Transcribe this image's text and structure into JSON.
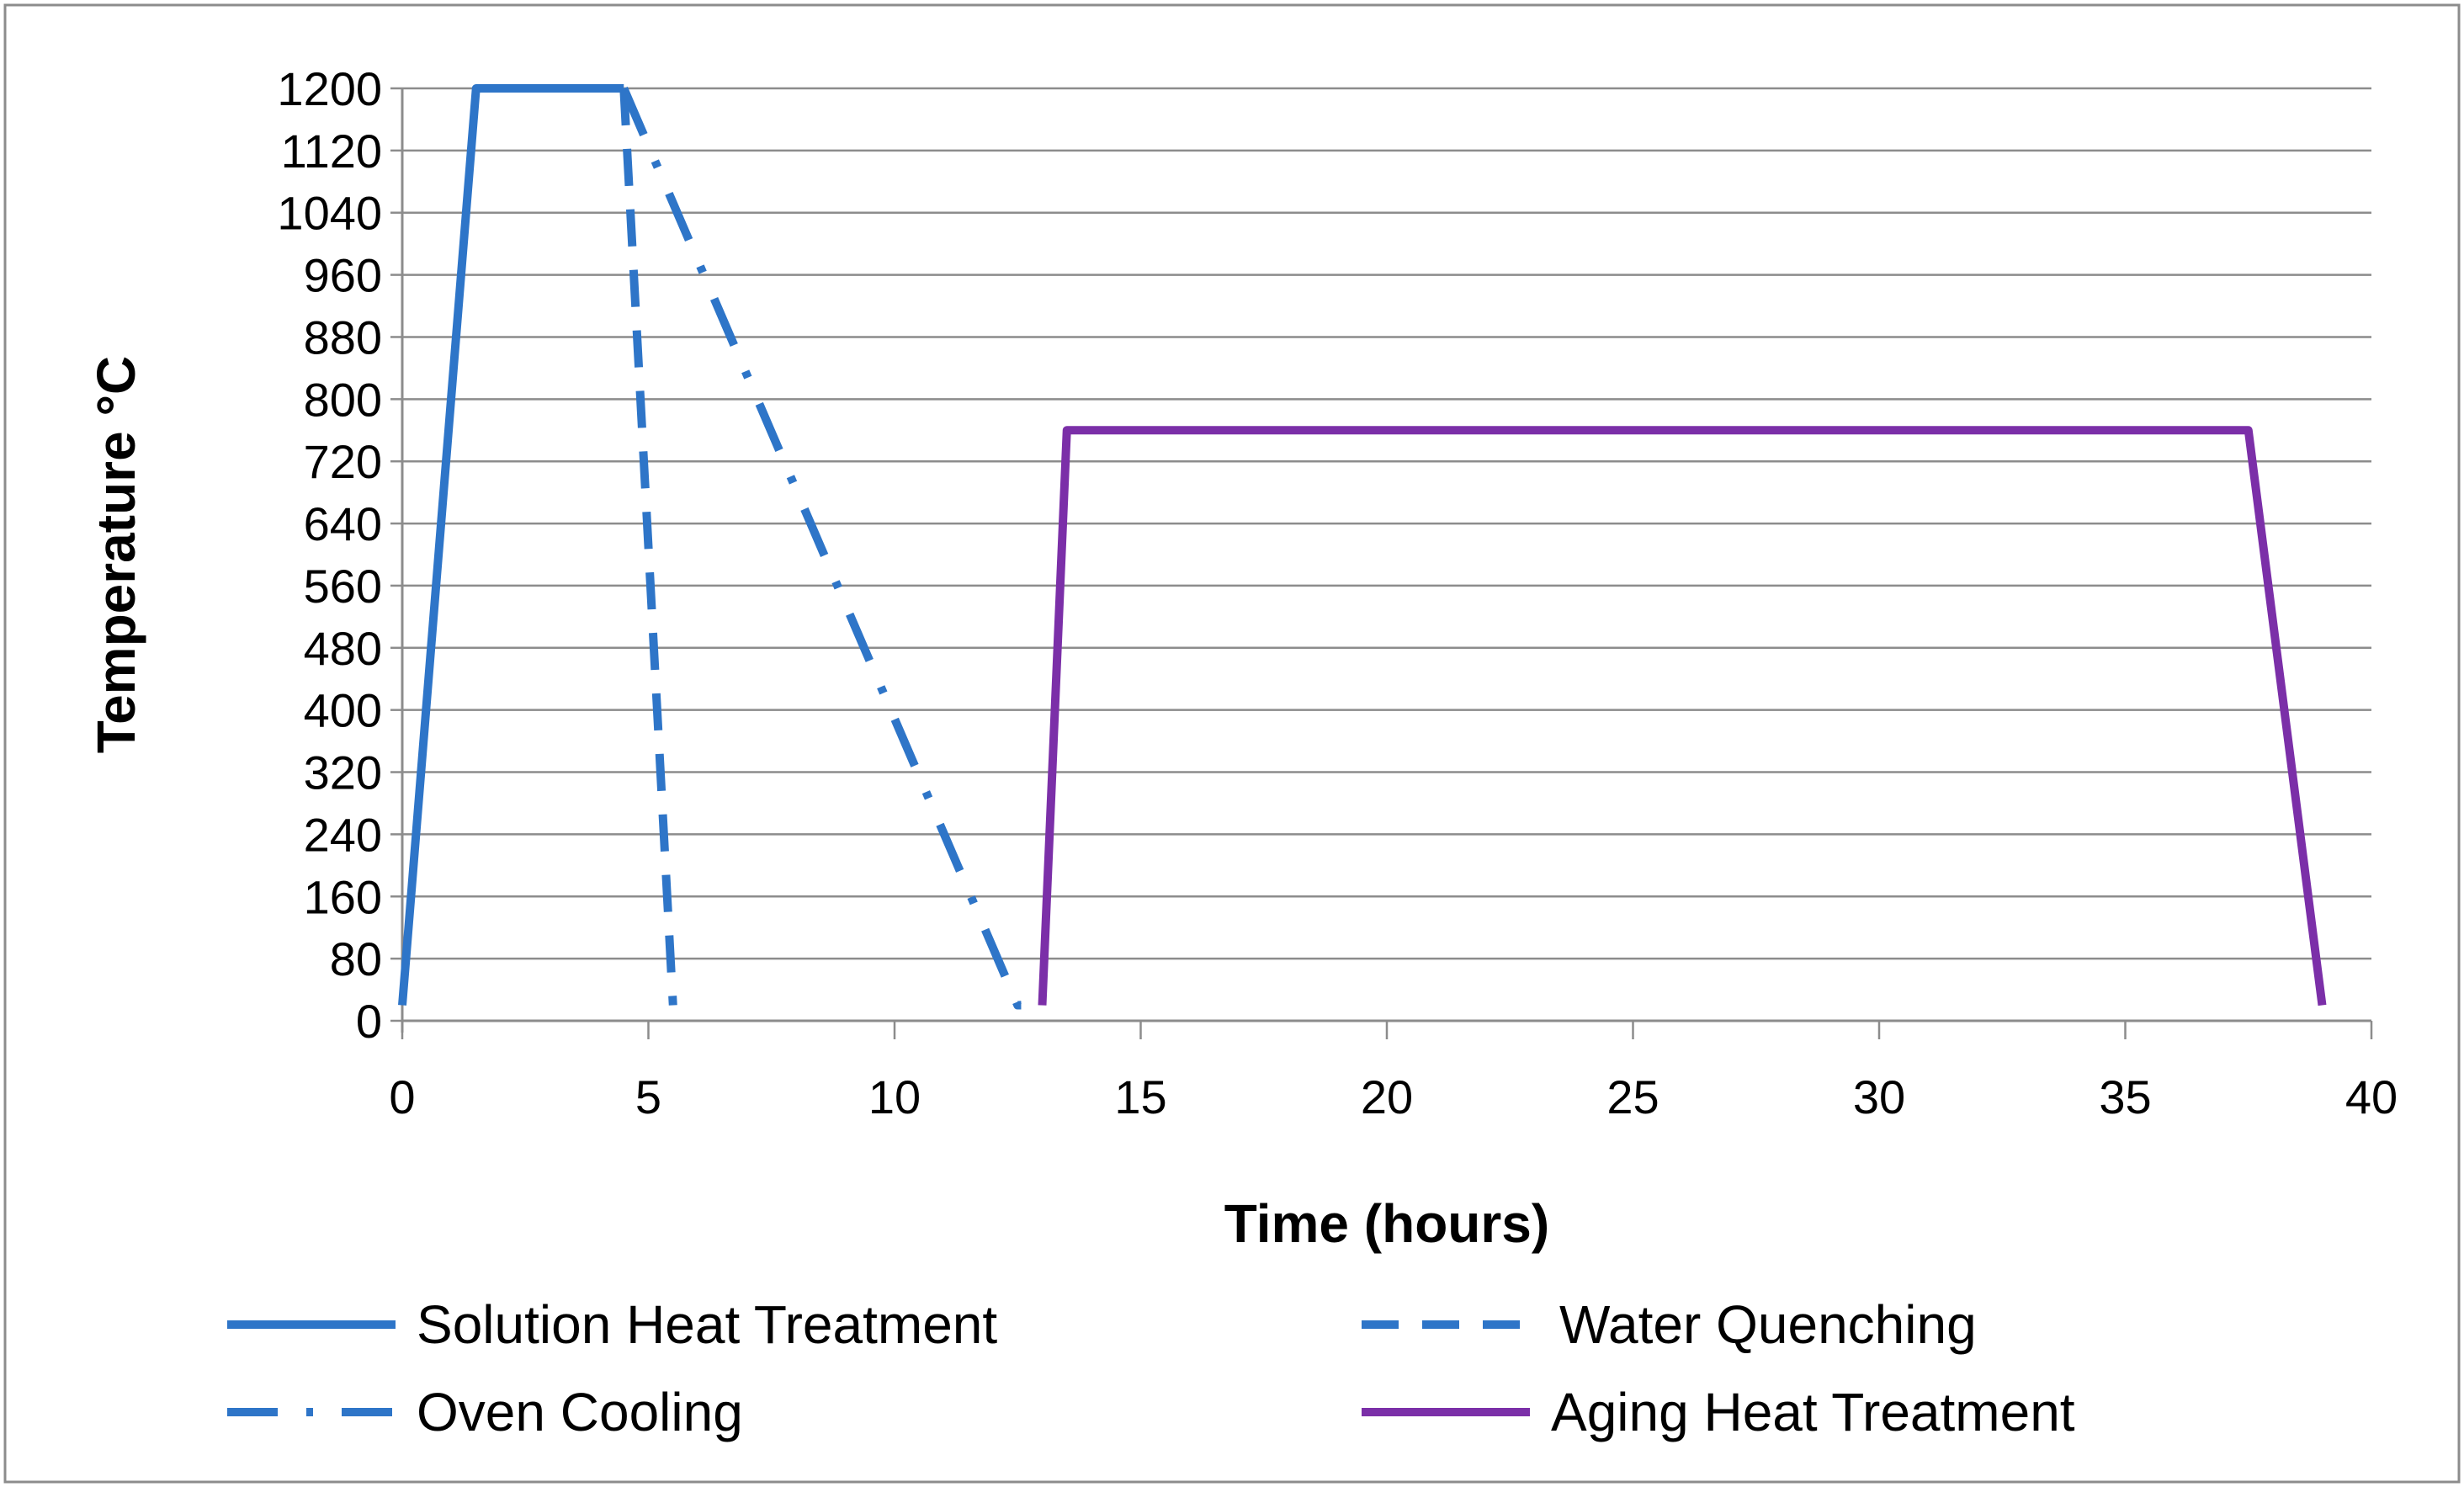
{
  "chart_data": {
    "type": "line",
    "title": "",
    "xlabel": "Time (hours)",
    "ylabel": "Temperature °C",
    "xlim": [
      0,
      40
    ],
    "ylim": [
      0,
      1200
    ],
    "xticks": [
      0,
      5,
      10,
      15,
      20,
      25,
      30,
      35,
      40
    ],
    "yticks": [
      0,
      80,
      160,
      240,
      320,
      400,
      480,
      560,
      640,
      720,
      800,
      880,
      960,
      1040,
      1120,
      1200
    ],
    "grid": "horizontal",
    "legend_position": "bottom",
    "series": [
      {
        "name": "Solution Heat Treatment",
        "color": "#2E75C8",
        "style": "solid",
        "points": [
          [
            0,
            20
          ],
          [
            1.5,
            1200
          ],
          [
            4.5,
            1200
          ]
        ]
      },
      {
        "name": "Water Quenching",
        "color": "#2E75C8",
        "style": "dashed",
        "points": [
          [
            4.5,
            1200
          ],
          [
            5.5,
            20
          ]
        ]
      },
      {
        "name": "Oven Cooling",
        "color": "#2E75C8",
        "style": "dashdot",
        "points": [
          [
            4.5,
            1200
          ],
          [
            12.5,
            20
          ],
          [
            13,
            20
          ]
        ]
      },
      {
        "name": "Aging Heat Treatment",
        "color": "#7B2FA8",
        "style": "solid",
        "points": [
          [
            13,
            20
          ],
          [
            13.5,
            760
          ],
          [
            37.5,
            760
          ],
          [
            39,
            20
          ]
        ]
      }
    ]
  }
}
